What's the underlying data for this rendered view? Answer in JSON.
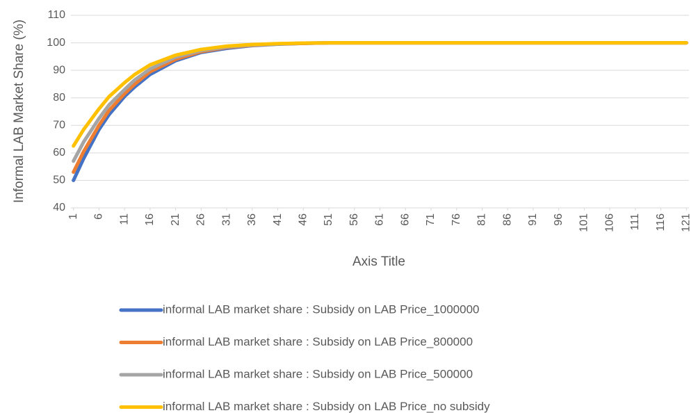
{
  "chart_data": {
    "type": "line",
    "x_label": "Axis Title",
    "y_label": "Informal LAB Market Share (%)",
    "x": [
      1,
      3,
      6,
      8,
      11,
      13,
      16,
      21,
      26,
      31,
      36,
      41,
      46,
      51,
      61,
      71,
      81,
      91,
      101,
      111,
      121
    ],
    "series": [
      {
        "name": "informal LAB market share : Subsidy on LAB Price_1000000",
        "color": "#4472c4",
        "values": [
          50,
          58,
          68.5,
          74,
          80.5,
          84,
          88.5,
          93.5,
          96.5,
          98,
          99,
          99.5,
          99.8,
          100,
          100,
          100,
          100,
          100,
          100,
          100,
          100
        ]
      },
      {
        "name": "informal LAB market share : Subsidy on LAB Price_800000",
        "color": "#ed7d31",
        "values": [
          53,
          60.5,
          70,
          75.5,
          81.5,
          85,
          89.5,
          94,
          96.8,
          98.3,
          99.1,
          99.6,
          99.8,
          100,
          100,
          100,
          100,
          100,
          100,
          100,
          100
        ]
      },
      {
        "name": "informal LAB market share : Subsidy on LAB Price_500000",
        "color": "#a5a5a5",
        "values": [
          57,
          64,
          72.5,
          77.5,
          83,
          86.5,
          90.5,
          94.8,
          97.2,
          98.5,
          99.2,
          99.6,
          99.9,
          100,
          100,
          100,
          100,
          100,
          100,
          100,
          100
        ]
      },
      {
        "name": "informal LAB market share : Subsidy on LAB Price_no subsidy",
        "color": "#ffc000",
        "values": [
          62.5,
          68.5,
          76,
          80.5,
          85.5,
          88.5,
          92,
          95.5,
          97.6,
          98.8,
          99.4,
          99.7,
          99.9,
          100,
          100,
          100,
          100,
          100,
          100,
          100,
          100
        ]
      }
    ],
    "xlim": [
      0.5,
      121.5
    ],
    "xticks": [
      1,
      6,
      11,
      16,
      21,
      26,
      31,
      36,
      41,
      46,
      51,
      56,
      61,
      66,
      71,
      76,
      81,
      86,
      91,
      96,
      101,
      106,
      111,
      116,
      121
    ],
    "ylim": [
      40,
      110
    ],
    "yticks": [
      40,
      50,
      60,
      70,
      80,
      90,
      100,
      110
    ],
    "grid": true,
    "legend": "bottom"
  }
}
